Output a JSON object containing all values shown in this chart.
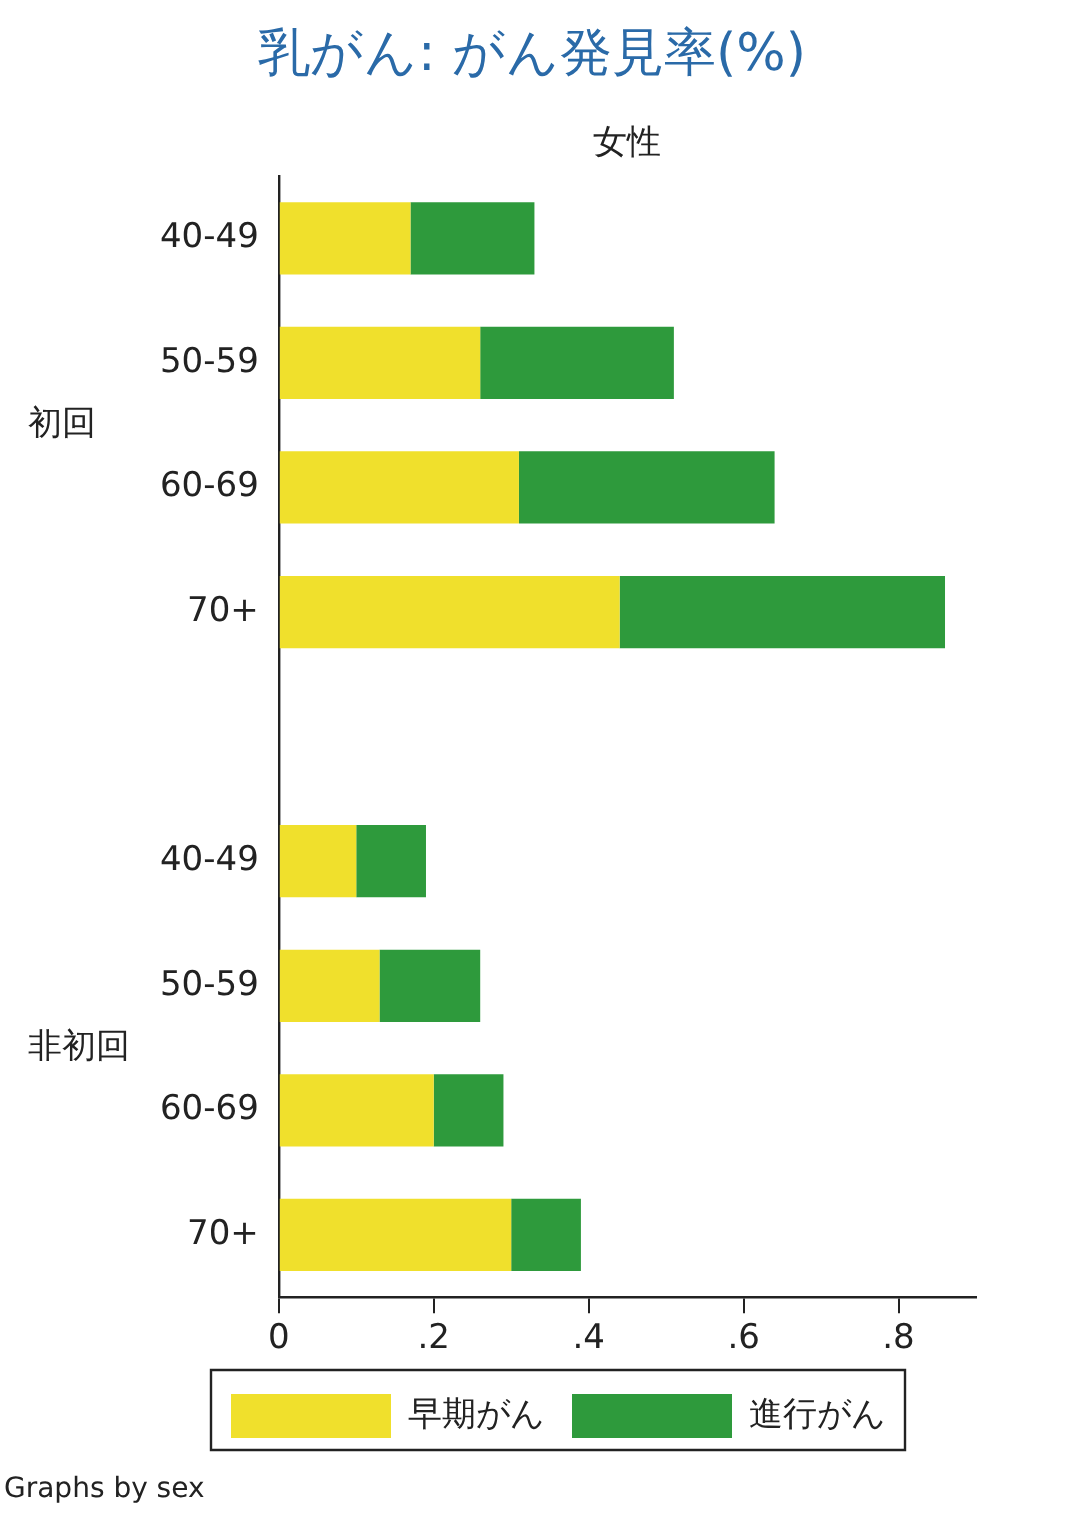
{
  "chart_data": {
    "type": "bar",
    "orientation": "horizontal",
    "stacked": true,
    "title": "乳がん: がん発見率(%)",
    "subtitle": "女性",
    "categories": [
      "40-49",
      "50-59",
      "60-69",
      "70+",
      null,
      "40-49",
      "50-59",
      "60-69",
      "70+"
    ],
    "series": [
      {
        "name": "早期がん",
        "color": "#f0e02c",
        "values": [
          0.17,
          0.26,
          0.31,
          0.44,
          null,
          0.1,
          0.13,
          0.2,
          0.3
        ]
      },
      {
        "name": "進行がん",
        "color": "#2e9a3c",
        "values": [
          0.16,
          0.25,
          0.33,
          0.42,
          null,
          0.09,
          0.13,
          0.09,
          0.09
        ]
      }
    ],
    "xlim": [
      0,
      0.9
    ],
    "xticks": [
      {
        "value": 0,
        "label": "0"
      },
      {
        "value": 0.2,
        "label": ".2"
      },
      {
        "value": 0.4,
        "label": ".4"
      },
      {
        "value": 0.6,
        "label": ".6"
      },
      {
        "value": 0.8,
        "label": ".8"
      }
    ],
    "grid": false,
    "legend": "bottom",
    "annotations": [
      "初回",
      "非初回",
      "Graphs by sex"
    ]
  }
}
